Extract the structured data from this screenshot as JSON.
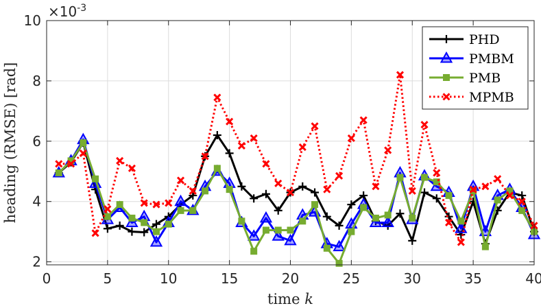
{
  "chart_data": {
    "type": "line",
    "xlabel": "time",
    "xlabel_var": "k",
    "ylabel": "heading (RMSE) [rad]",
    "exponent_base": "×10",
    "exponent_power": "-3",
    "xlim": [
      0,
      40
    ],
    "ylim": [
      1.9,
      10
    ],
    "xticks": [
      0,
      5,
      10,
      15,
      20,
      25,
      30,
      35,
      40
    ],
    "yticks": [
      2,
      4,
      6,
      8,
      10
    ],
    "x": [
      1,
      2,
      3,
      4,
      5,
      6,
      7,
      8,
      9,
      10,
      11,
      12,
      13,
      14,
      15,
      16,
      17,
      18,
      19,
      20,
      21,
      22,
      23,
      24,
      25,
      26,
      27,
      28,
      29,
      30,
      31,
      32,
      33,
      34,
      35,
      36,
      37,
      38,
      39,
      40
    ],
    "legend_position": "top-right",
    "series": [
      {
        "name": "PHD",
        "color": "#000000",
        "marker": "plus",
        "dash": "solid",
        "values": [
          4.95,
          5.3,
          5.95,
          4.4,
          3.1,
          3.2,
          3.0,
          2.98,
          3.25,
          3.5,
          3.9,
          4.2,
          5.5,
          6.2,
          5.6,
          4.5,
          4.1,
          4.25,
          3.7,
          4.3,
          4.5,
          4.3,
          3.5,
          3.2,
          3.9,
          4.2,
          3.35,
          3.2,
          3.6,
          2.7,
          4.3,
          4.1,
          3.5,
          2.9,
          4.0,
          2.6,
          3.7,
          4.3,
          4.2,
          3.0
        ]
      },
      {
        "name": "PMBM",
        "color": "#0000ff",
        "marker": "triangle",
        "dash": "solid",
        "values": [
          4.95,
          5.35,
          6.05,
          4.6,
          3.4,
          3.8,
          3.3,
          3.5,
          2.65,
          3.3,
          4.0,
          3.7,
          4.5,
          5.0,
          4.6,
          3.3,
          2.85,
          3.45,
          2.85,
          2.7,
          3.55,
          3.65,
          2.6,
          2.5,
          3.25,
          3.9,
          3.3,
          3.3,
          4.95,
          3.4,
          4.85,
          4.5,
          4.3,
          3.1,
          4.5,
          3.0,
          4.2,
          4.4,
          3.8,
          2.9
        ]
      },
      {
        "name": "PMB",
        "color": "#77ac30",
        "marker": "square",
        "dash": "solid",
        "values": [
          4.95,
          5.35,
          5.95,
          4.75,
          3.5,
          3.9,
          3.45,
          3.3,
          3.0,
          3.25,
          3.7,
          3.7,
          4.35,
          5.1,
          4.4,
          3.35,
          2.35,
          3.05,
          3.05,
          3.05,
          3.35,
          3.9,
          2.45,
          1.95,
          3.0,
          3.8,
          3.45,
          3.55,
          4.8,
          3.45,
          4.8,
          4.65,
          4.2,
          3.35,
          4.35,
          2.5,
          4.05,
          4.35,
          3.7,
          3.0
        ]
      },
      {
        "name": "MPMB",
        "color": "#ff0000",
        "marker": "x",
        "dash": "dotted",
        "values": [
          5.25,
          5.25,
          5.6,
          2.95,
          3.75,
          5.35,
          5.1,
          3.95,
          3.9,
          3.95,
          4.7,
          4.35,
          5.5,
          7.45,
          6.65,
          5.85,
          6.1,
          5.25,
          4.6,
          4.3,
          5.8,
          6.5,
          4.4,
          4.85,
          6.1,
          6.7,
          4.5,
          5.7,
          8.2,
          4.35,
          6.55,
          4.95,
          3.3,
          2.65,
          4.4,
          4.5,
          4.75,
          4.2,
          4.0,
          3.2
        ]
      }
    ]
  }
}
